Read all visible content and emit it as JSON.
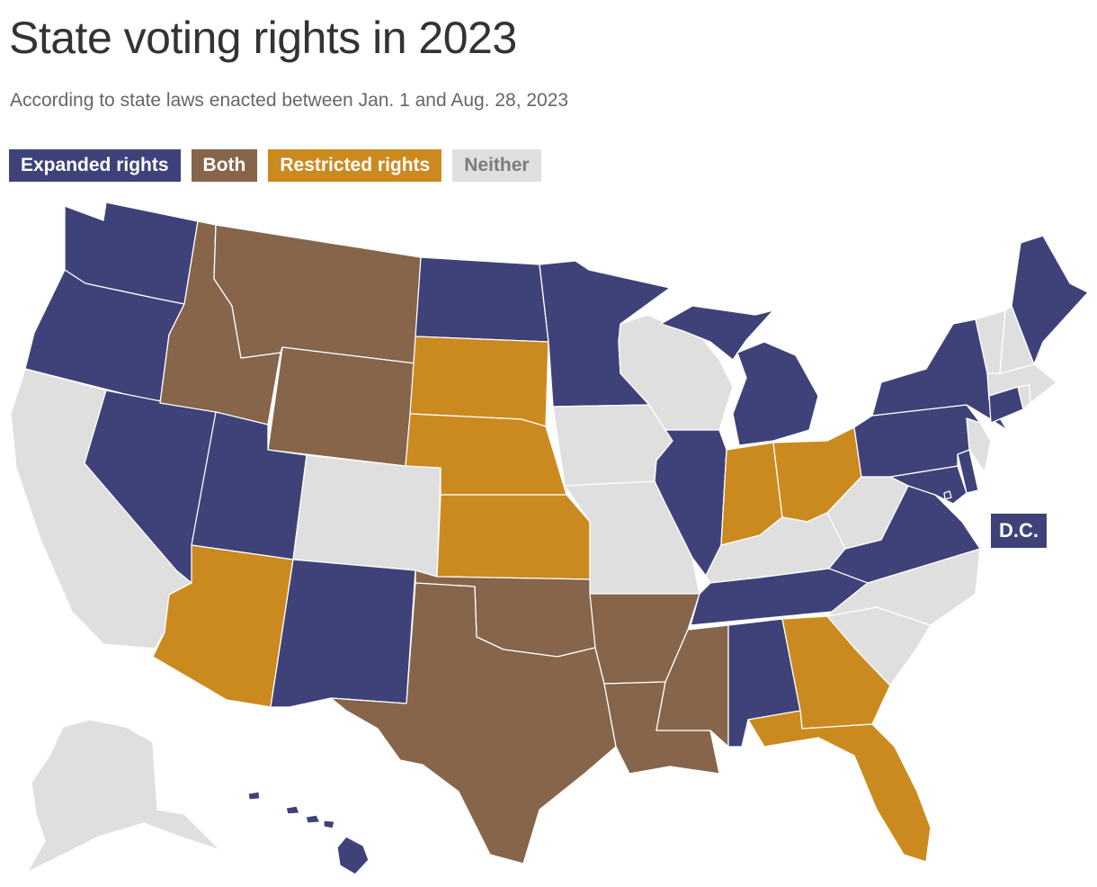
{
  "title": "State voting rights in 2023",
  "subtitle": "According to state laws enacted between Jan. 1 and Aug. 28, 2023",
  "colors": {
    "expanded": "#3f4278",
    "both": "#86654b",
    "restricted": "#cb8a1f",
    "neither": "#dfdfdf"
  },
  "legend": [
    {
      "key": "expanded",
      "label": "Expanded rights"
    },
    {
      "key": "both",
      "label": "Both"
    },
    {
      "key": "restricted",
      "label": "Restricted rights"
    },
    {
      "key": "neither",
      "label": "Neither"
    }
  ],
  "dc_label": "D.C.",
  "states": [
    {
      "name": "Washington",
      "category": "expanded"
    },
    {
      "name": "Oregon",
      "category": "expanded"
    },
    {
      "name": "California",
      "category": "neither"
    },
    {
      "name": "Nevada",
      "category": "expanded"
    },
    {
      "name": "Idaho",
      "category": "both"
    },
    {
      "name": "Montana",
      "category": "both"
    },
    {
      "name": "Wyoming",
      "category": "both"
    },
    {
      "name": "Utah",
      "category": "expanded"
    },
    {
      "name": "Colorado",
      "category": "neither"
    },
    {
      "name": "Arizona",
      "category": "restricted"
    },
    {
      "name": "New Mexico",
      "category": "expanded"
    },
    {
      "name": "North Dakota",
      "category": "expanded"
    },
    {
      "name": "South Dakota",
      "category": "restricted"
    },
    {
      "name": "Nebraska",
      "category": "restricted"
    },
    {
      "name": "Kansas",
      "category": "restricted"
    },
    {
      "name": "Oklahoma",
      "category": "both"
    },
    {
      "name": "Texas",
      "category": "both"
    },
    {
      "name": "Minnesota",
      "category": "expanded"
    },
    {
      "name": "Iowa",
      "category": "neither"
    },
    {
      "name": "Missouri",
      "category": "neither"
    },
    {
      "name": "Arkansas",
      "category": "both"
    },
    {
      "name": "Louisiana",
      "category": "both"
    },
    {
      "name": "Wisconsin",
      "category": "neither"
    },
    {
      "name": "Illinois",
      "category": "expanded"
    },
    {
      "name": "Michigan",
      "category": "expanded"
    },
    {
      "name": "Indiana",
      "category": "restricted"
    },
    {
      "name": "Ohio",
      "category": "restricted"
    },
    {
      "name": "Kentucky",
      "category": "neither"
    },
    {
      "name": "Tennessee",
      "category": "expanded"
    },
    {
      "name": "Mississippi",
      "category": "both"
    },
    {
      "name": "Alabama",
      "category": "expanded"
    },
    {
      "name": "Georgia",
      "category": "restricted"
    },
    {
      "name": "Florida",
      "category": "restricted"
    },
    {
      "name": "South Carolina",
      "category": "neither"
    },
    {
      "name": "North Carolina",
      "category": "neither"
    },
    {
      "name": "Virginia",
      "category": "expanded"
    },
    {
      "name": "West Virginia",
      "category": "neither"
    },
    {
      "name": "Maryland",
      "category": "expanded"
    },
    {
      "name": "Delaware",
      "category": "expanded"
    },
    {
      "name": "New Jersey",
      "category": "neither"
    },
    {
      "name": "Pennsylvania",
      "category": "expanded"
    },
    {
      "name": "New York",
      "category": "expanded"
    },
    {
      "name": "Connecticut",
      "category": "expanded"
    },
    {
      "name": "Rhode Island",
      "category": "neither"
    },
    {
      "name": "Massachusetts",
      "category": "neither"
    },
    {
      "name": "Vermont",
      "category": "neither"
    },
    {
      "name": "New Hampshire",
      "category": "neither"
    },
    {
      "name": "Maine",
      "category": "expanded"
    },
    {
      "name": "Alaska",
      "category": "neither"
    },
    {
      "name": "Hawaii",
      "category": "expanded"
    },
    {
      "name": "District of Columbia",
      "category": "expanded"
    }
  ]
}
